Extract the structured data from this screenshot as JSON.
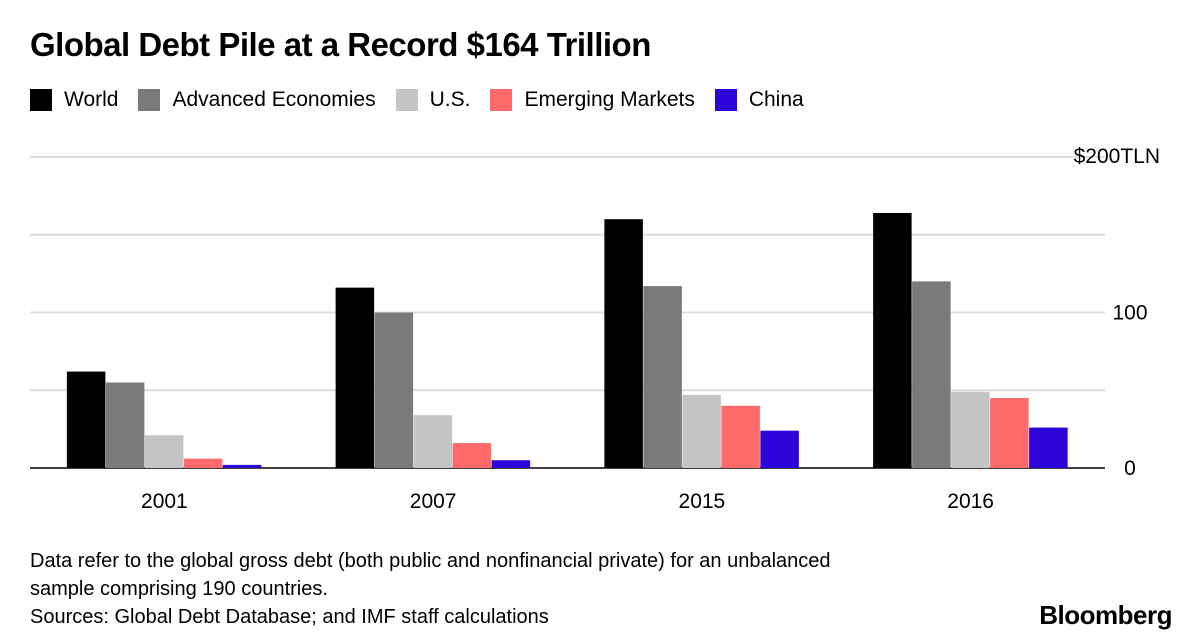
{
  "title": "Global Debt Pile at a Record $164 Trillion",
  "notes": [
    "Data refer to the global gross debt (both public and nonfinancial private) for an unbalanced",
    "sample comprising 190 countries.",
    "Sources: Global Debt Database; and IMF staff calculations"
  ],
  "brand": "Bloomberg",
  "colors": {
    "World": "#000000",
    "Advanced Economies": "#7a7a7a",
    "U.S.": "#c4c4c4",
    "Emerging Markets": "#ff6b6b",
    "China": "#2c05d9",
    "grid": "#dddddd"
  },
  "chart_data": {
    "type": "bar",
    "title": "Global Debt Pile at a Record $164 Trillion",
    "categories": [
      "2001",
      "2007",
      "2015",
      "2016"
    ],
    "series": [
      {
        "name": "World",
        "values": [
          62,
          116,
          160,
          164
        ]
      },
      {
        "name": "Advanced Economies",
        "values": [
          55,
          100,
          117,
          120
        ]
      },
      {
        "name": "U.S.",
        "values": [
          21,
          34,
          47,
          49
        ]
      },
      {
        "name": "Emerging Markets",
        "values": [
          6,
          16,
          40,
          45
        ]
      },
      {
        "name": "China",
        "values": [
          2,
          5,
          24,
          26
        ]
      }
    ],
    "ylim": [
      0,
      200
    ],
    "yticks": [
      {
        "value": 0,
        "label": "0"
      },
      {
        "value": 50,
        "label": ""
      },
      {
        "value": 100,
        "label": "100"
      },
      {
        "value": 150,
        "label": ""
      },
      {
        "value": 200,
        "label": "$200TLN"
      }
    ],
    "ylabel": "",
    "xlabel": "",
    "grid": true,
    "legend": "top-left",
    "y_axis_side": "right"
  }
}
